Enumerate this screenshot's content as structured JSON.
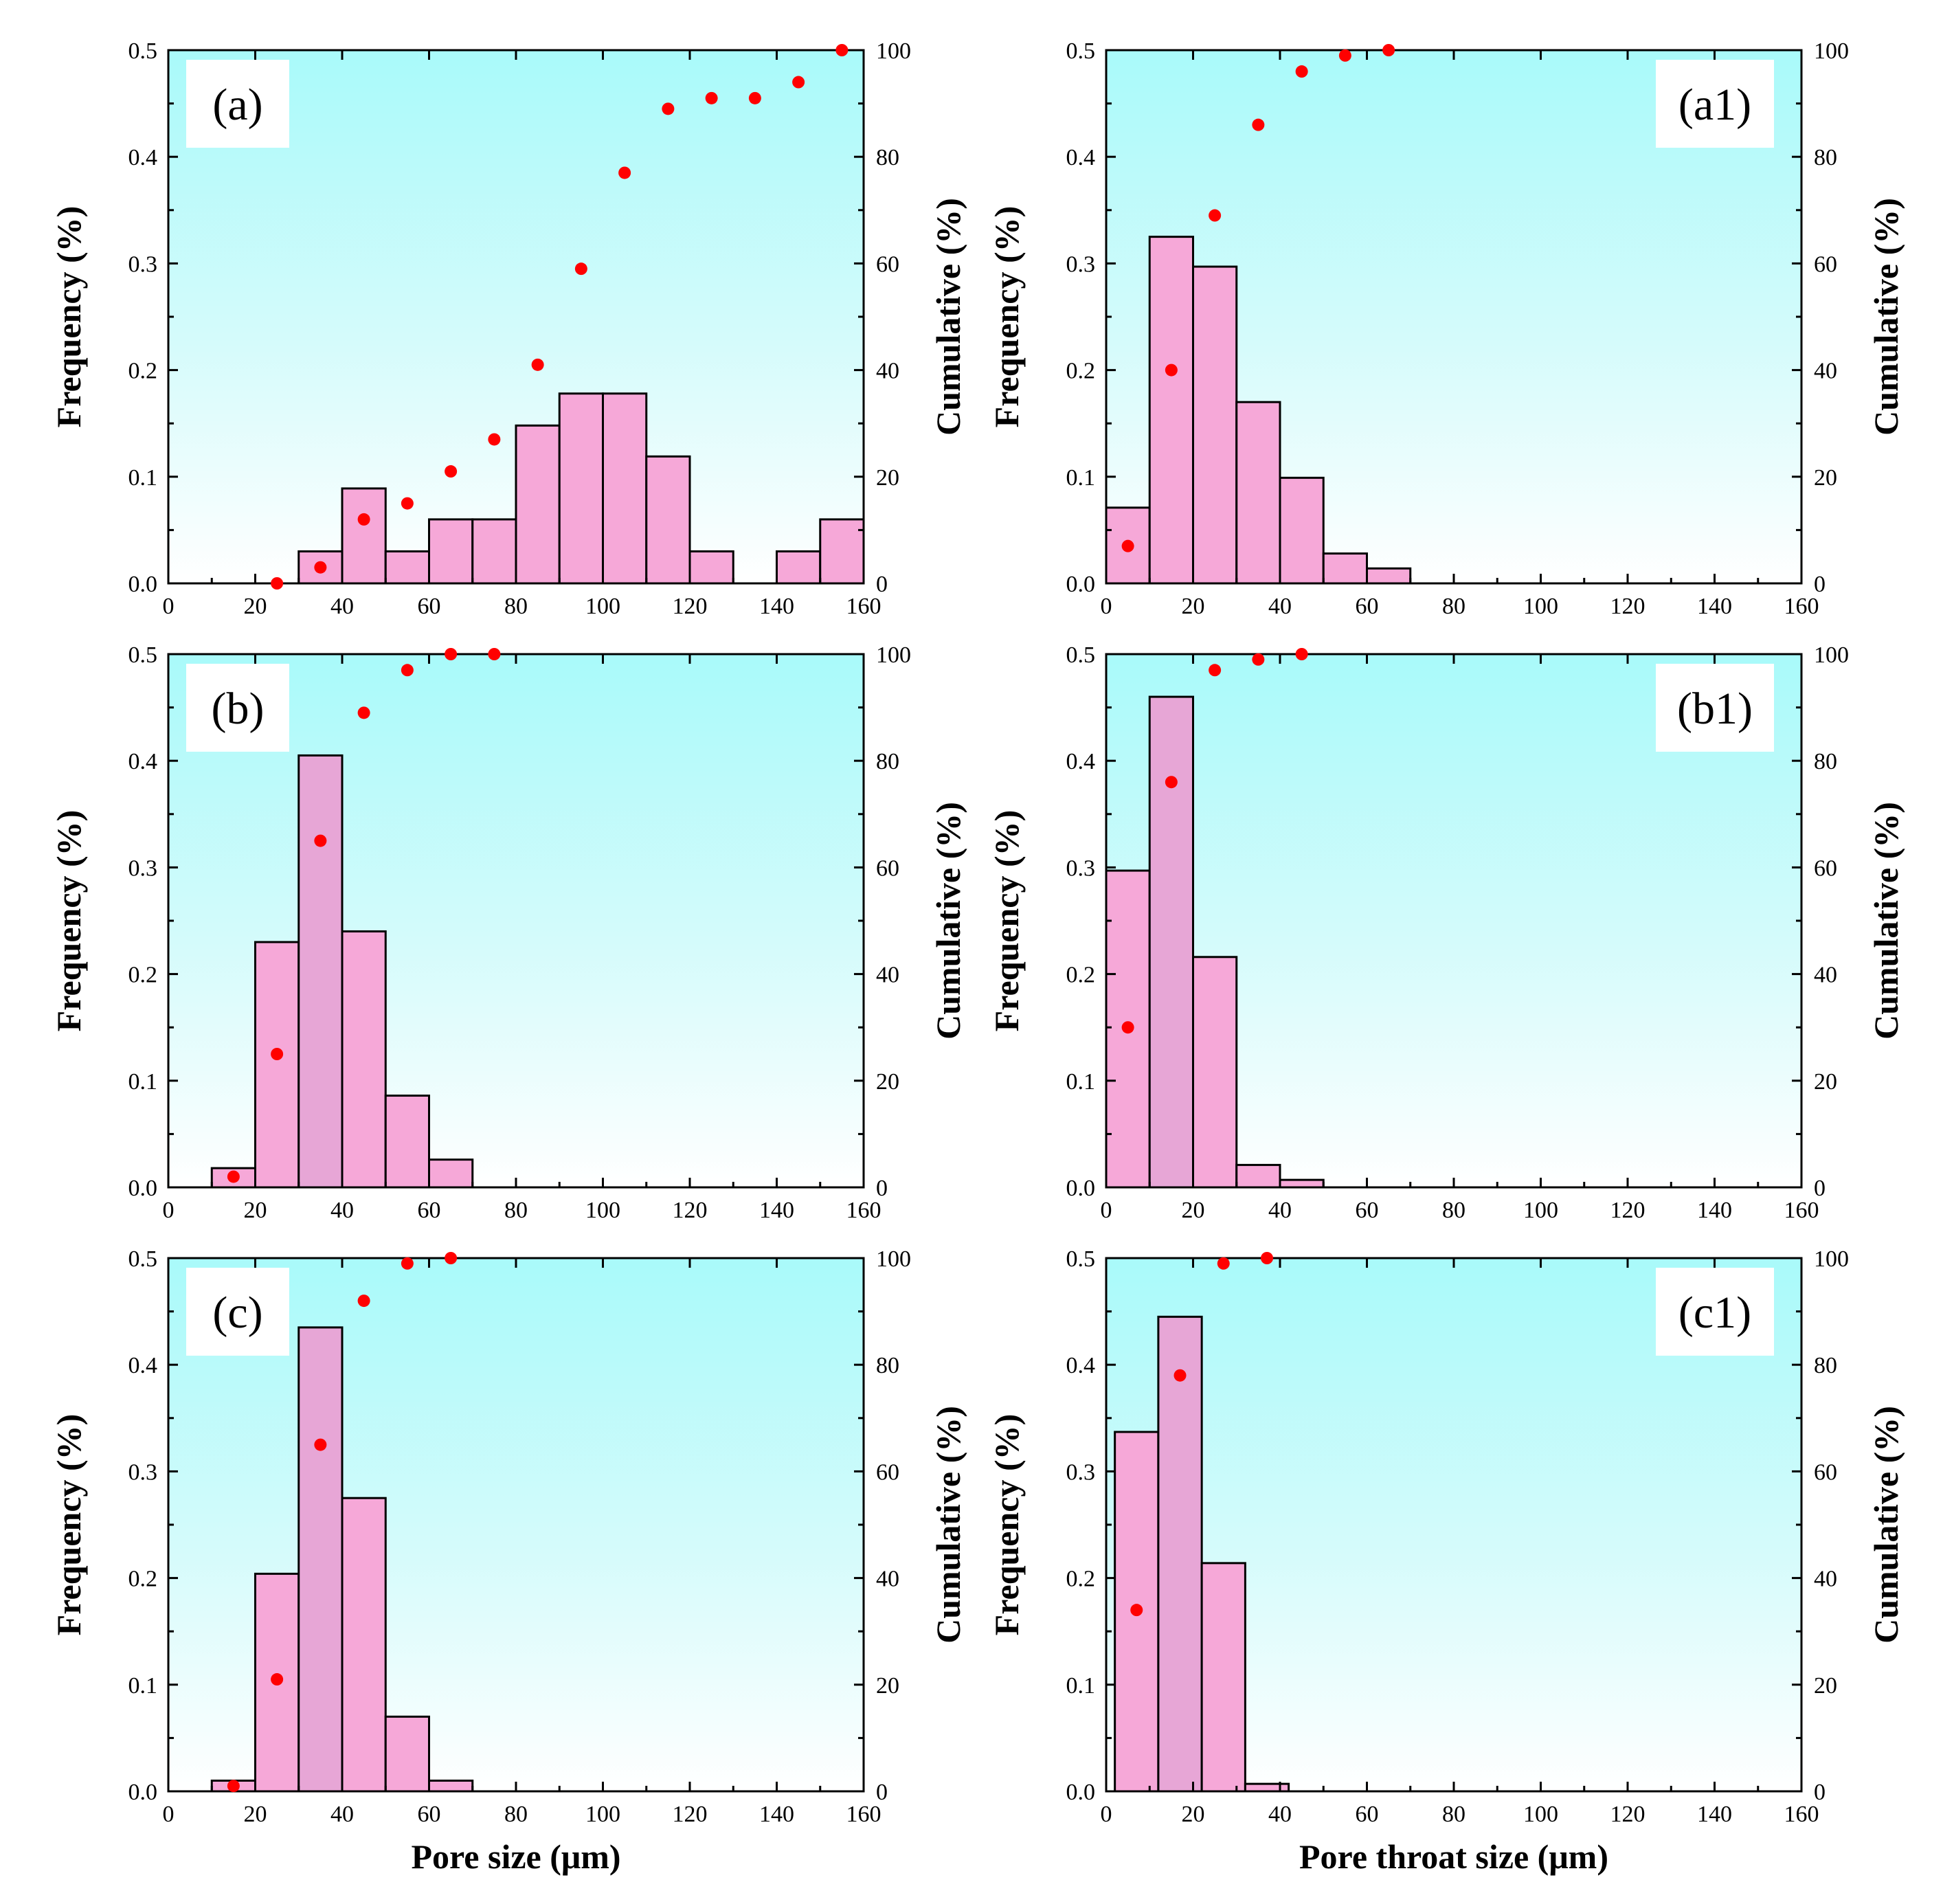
{
  "chart_data": [
    {
      "type": "bar",
      "panel_label": "(a)",
      "xlabel": "",
      "ylabel": "Frequency (%)",
      "y2label": "Cumulative (%)",
      "xlim": [
        0,
        160
      ],
      "ylim": [
        0,
        0.5
      ],
      "y2lim": [
        0,
        100
      ],
      "x_ticks": [
        "0",
        "20",
        "40",
        "60",
        "80",
        "100",
        "120",
        "140",
        "160"
      ],
      "y_ticks": [
        "0.0",
        "0.1",
        "0.2",
        "0.3",
        "0.4",
        "0.5"
      ],
      "y2_ticks": [
        "0",
        "20",
        "40",
        "60",
        "80",
        "100"
      ],
      "bin_width": 10,
      "bins": [
        {
          "start": 30,
          "freq": 0.03
        },
        {
          "start": 40,
          "freq": 0.089
        },
        {
          "start": 50,
          "freq": 0.03
        },
        {
          "start": 60,
          "freq": 0.06
        },
        {
          "start": 70,
          "freq": 0.06
        },
        {
          "start": 80,
          "freq": 0.148
        },
        {
          "start": 90,
          "freq": 0.178
        },
        {
          "start": 100,
          "freq": 0.178
        },
        {
          "start": 110,
          "freq": 0.119
        },
        {
          "start": 120,
          "freq": 0.03
        },
        {
          "start": 140,
          "freq": 0.03
        },
        {
          "start": 150,
          "freq": 0.06
        }
      ],
      "cumulative": [
        {
          "x": 25,
          "y": 0
        },
        {
          "x": 35,
          "y": 3
        },
        {
          "x": 45,
          "y": 12
        },
        {
          "x": 55,
          "y": 15
        },
        {
          "x": 65,
          "y": 21
        },
        {
          "x": 75,
          "y": 27
        },
        {
          "x": 85,
          "y": 41
        },
        {
          "x": 95,
          "y": 59
        },
        {
          "x": 105,
          "y": 77
        },
        {
          "x": 115,
          "y": 89
        },
        {
          "x": 125,
          "y": 91
        },
        {
          "x": 135,
          "y": 91
        },
        {
          "x": 145,
          "y": 94
        },
        {
          "x": 155,
          "y": 100
        }
      ]
    },
    {
      "type": "bar",
      "panel_label": "(a1)",
      "xlabel": "",
      "ylabel": "Frequency (%)",
      "y2label": "Cumulative (%)",
      "xlim": [
        0,
        160
      ],
      "ylim": [
        0,
        0.5
      ],
      "y2lim": [
        0,
        100
      ],
      "x_ticks": [
        "0",
        "20",
        "40",
        "60",
        "80",
        "100",
        "120",
        "140",
        "160"
      ],
      "y_ticks": [
        "0.0",
        "0.1",
        "0.2",
        "0.3",
        "0.4",
        "0.5"
      ],
      "y2_ticks": [
        "0",
        "20",
        "40",
        "60",
        "80",
        "100"
      ],
      "bin_width": 10,
      "bins": [
        {
          "start": 0,
          "freq": 0.071
        },
        {
          "start": 10,
          "freq": 0.325
        },
        {
          "start": 20,
          "freq": 0.297
        },
        {
          "start": 30,
          "freq": 0.17
        },
        {
          "start": 40,
          "freq": 0.099
        },
        {
          "start": 50,
          "freq": 0.028
        },
        {
          "start": 60,
          "freq": 0.014
        }
      ],
      "cumulative": [
        {
          "x": 5,
          "y": 7
        },
        {
          "x": 15,
          "y": 40
        },
        {
          "x": 25,
          "y": 69
        },
        {
          "x": 35,
          "y": 86
        },
        {
          "x": 45,
          "y": 96
        },
        {
          "x": 55,
          "y": 99
        },
        {
          "x": 65,
          "y": 100
        }
      ]
    },
    {
      "type": "bar",
      "panel_label": "(b)",
      "xlabel": "",
      "ylabel": "Frequency (%)",
      "y2label": "Cumulative (%)",
      "xlim": [
        0,
        160
      ],
      "ylim": [
        0,
        0.5
      ],
      "y2lim": [
        0,
        100
      ],
      "x_ticks": [
        "0",
        "20",
        "40",
        "60",
        "80",
        "100",
        "120",
        "140",
        "160"
      ],
      "y_ticks": [
        "0.0",
        "0.1",
        "0.2",
        "0.3",
        "0.4",
        "0.5"
      ],
      "y2_ticks": [
        "0",
        "20",
        "40",
        "60",
        "80",
        "100"
      ],
      "bin_width": 10,
      "bins": [
        {
          "start": 10,
          "freq": 0.018
        },
        {
          "start": 20,
          "freq": 0.23
        },
        {
          "start": 30,
          "freq": 0.405
        },
        {
          "start": 40,
          "freq": 0.24
        },
        {
          "start": 50,
          "freq": 0.086
        },
        {
          "start": 60,
          "freq": 0.026
        }
      ],
      "cumulative": [
        {
          "x": 15,
          "y": 2
        },
        {
          "x": 25,
          "y": 25
        },
        {
          "x": 35,
          "y": 65
        },
        {
          "x": 45,
          "y": 89
        },
        {
          "x": 55,
          "y": 97
        },
        {
          "x": 65,
          "y": 100
        },
        {
          "x": 75,
          "y": 100
        }
      ]
    },
    {
      "type": "bar",
      "panel_label": "(b1)",
      "xlabel": "",
      "ylabel": "Frequency (%)",
      "y2label": "Cumulative (%)",
      "xlim": [
        0,
        160
      ],
      "ylim": [
        0,
        0.5
      ],
      "y2lim": [
        0,
        100
      ],
      "x_ticks": [
        "0",
        "20",
        "40",
        "60",
        "80",
        "100",
        "120",
        "140",
        "160"
      ],
      "y_ticks": [
        "0.0",
        "0.1",
        "0.2",
        "0.3",
        "0.4",
        "0.5"
      ],
      "y2_ticks": [
        "0",
        "20",
        "40",
        "60",
        "80",
        "100"
      ],
      "bin_width": 10,
      "bins": [
        {
          "start": 0,
          "freq": 0.297
        },
        {
          "start": 10,
          "freq": 0.46
        },
        {
          "start": 20,
          "freq": 0.216
        },
        {
          "start": 30,
          "freq": 0.021
        },
        {
          "start": 40,
          "freq": 0.007
        }
      ],
      "cumulative": [
        {
          "x": 5,
          "y": 30
        },
        {
          "x": 15,
          "y": 76
        },
        {
          "x": 25,
          "y": 97
        },
        {
          "x": 35,
          "y": 99
        },
        {
          "x": 45,
          "y": 100
        }
      ]
    },
    {
      "type": "bar",
      "panel_label": "(c)",
      "xlabel": "Pore size (μm)",
      "ylabel": "Frequency (%)",
      "y2label": "Cumulative (%)",
      "xlim": [
        0,
        160
      ],
      "ylim": [
        0,
        0.5
      ],
      "y2lim": [
        0,
        100
      ],
      "x_ticks": [
        "0",
        "20",
        "40",
        "60",
        "80",
        "100",
        "120",
        "140",
        "160"
      ],
      "y_ticks": [
        "0.0",
        "0.1",
        "0.2",
        "0.3",
        "0.4",
        "0.5"
      ],
      "y2_ticks": [
        "0",
        "20",
        "40",
        "60",
        "80",
        "100"
      ],
      "bin_width": 10,
      "bins": [
        {
          "start": 10,
          "freq": 0.01
        },
        {
          "start": 20,
          "freq": 0.204
        },
        {
          "start": 30,
          "freq": 0.435
        },
        {
          "start": 40,
          "freq": 0.275
        },
        {
          "start": 50,
          "freq": 0.07
        },
        {
          "start": 60,
          "freq": 0.01
        }
      ],
      "cumulative": [
        {
          "x": 15,
          "y": 1
        },
        {
          "x": 25,
          "y": 21
        },
        {
          "x": 35,
          "y": 65
        },
        {
          "x": 45,
          "y": 92
        },
        {
          "x": 55,
          "y": 99
        },
        {
          "x": 65,
          "y": 100
        }
      ]
    },
    {
      "type": "bar",
      "panel_label": "(c1)",
      "xlabel": "Pore throat size (μm)",
      "ylabel": "Frequency (%)",
      "y2label": "Cumulative (%)",
      "xlim": [
        0,
        160
      ],
      "ylim": [
        0,
        0.5
      ],
      "y2lim": [
        0,
        100
      ],
      "x_ticks": [
        "0",
        "20",
        "40",
        "60",
        "80",
        "100",
        "120",
        "140",
        "160"
      ],
      "y_ticks": [
        "0.0",
        "0.1",
        "0.2",
        "0.3",
        "0.4",
        "0.5"
      ],
      "y2_ticks": [
        "0",
        "20",
        "40",
        "60",
        "80",
        "100"
      ],
      "bin_width": 10,
      "bins": [
        {
          "start": 2,
          "freq": 0.337
        },
        {
          "start": 12,
          "freq": 0.445
        },
        {
          "start": 22,
          "freq": 0.214
        },
        {
          "start": 32,
          "freq": 0.007
        }
      ],
      "cumulative": [
        {
          "x": 7,
          "y": 34
        },
        {
          "x": 17,
          "y": 78
        },
        {
          "x": 27,
          "y": 99
        },
        {
          "x": 37,
          "y": 100
        }
      ]
    }
  ]
}
